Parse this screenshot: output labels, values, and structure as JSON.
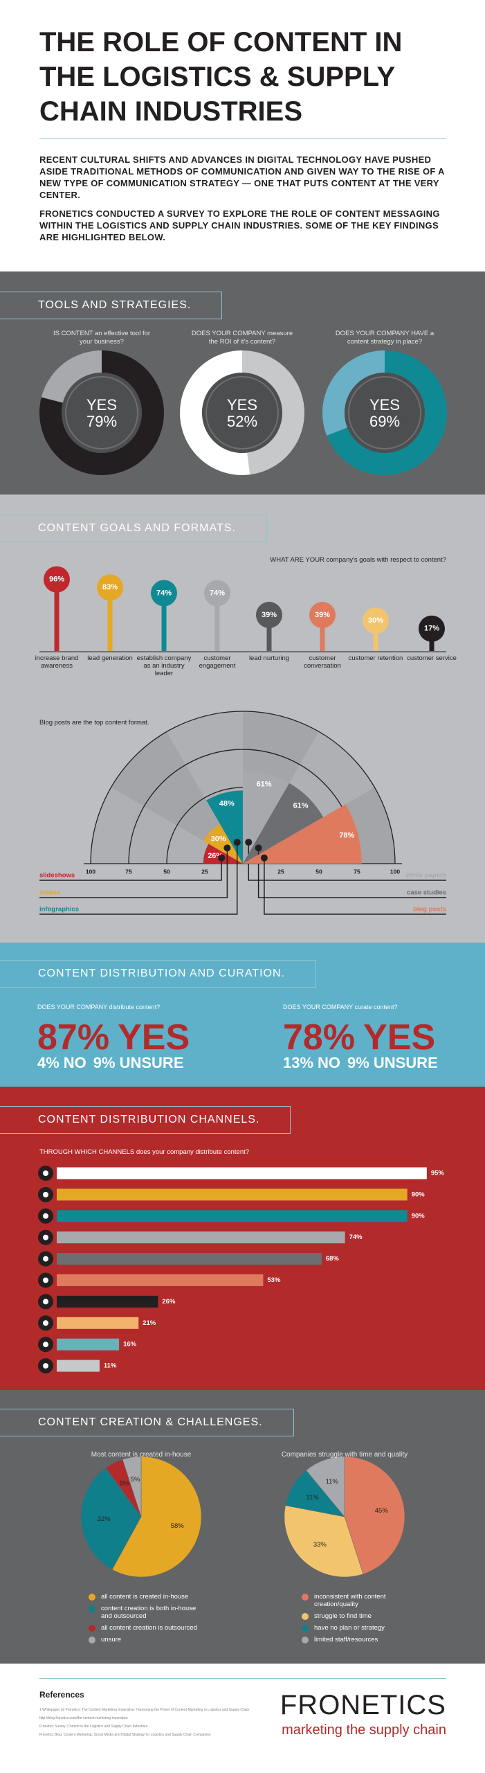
{
  "header": {
    "title": "THE ROLE OF CONTENT IN THE LOGISTICS & SUPPLY CHAIN INDUSTRIES",
    "paragraphs": [
      "RECENT CULTURAL SHIFTS AND ADVANCES IN DIGITAL TECHNOLOGY HAVE PUSHED ASIDE TRADITIONAL METHODS OF COMMUNICATION AND GIVEN WAY TO THE RISE OF A NEW TYPE OF COMMUNICATION STRATEGY — ONE THAT PUTS CONTENT AT THE VERY CENTER.",
      "FRONETICS CONDUCTED A SURVEY TO EXPLORE THE ROLE OF CONTENT MESSAGING WITHIN THE LOGISTICS AND SUPPLY CHAIN INDUSTRIES. SOME OF THE KEY FINDINGS ARE HIGHLIGHTED BELOW."
    ]
  },
  "sections": [
    "TOOLS AND STRATEGIES.",
    "CONTENT GOALS AND FORMATS.",
    "CONTENT DISTRIBUTION AND CURATION.",
    "CONTENT DISTRIBUTION CHANNELS.",
    "CONTENT CREATION & CHALLENGES."
  ],
  "chart_data": [
    {
      "type": "donut",
      "title": "IS CONTENT an effective tool for your business?",
      "categories": [
        "YES"
      ],
      "values": [
        79
      ],
      "value_labels": [
        "79%"
      ],
      "colors": [
        "#231f20",
        "#a7a9ac"
      ]
    },
    {
      "type": "donut",
      "title": "DOES YOUR COMPANY measure the ROI of it's content?",
      "categories": [
        "YES"
      ],
      "values": [
        52
      ],
      "value_labels": [
        "52%"
      ],
      "colors": [
        "#ffffff",
        "#c7c8ca"
      ]
    },
    {
      "type": "donut",
      "title": "DOES YOUR COMPANY HAVE a content strategy in place?",
      "categories": [
        "YES"
      ],
      "values": [
        69
      ],
      "value_labels": [
        "69%"
      ],
      "colors": [
        "#0f8a94",
        "#6ab0c6"
      ]
    },
    {
      "type": "lollipop",
      "title": "WHAT ARE YOUR company's goals with respect to content?",
      "categories": [
        "increase brand awareness",
        "lead generation",
        "establish company as an industry leader",
        "customer engagement",
        "lead nurturing",
        "customer conversation",
        "customer retention",
        "customer service"
      ],
      "values": [
        96,
        83,
        74,
        74,
        39,
        39,
        30,
        17
      ],
      "value_labels": [
        "96%",
        "83%",
        "74%",
        "74%",
        "39%",
        "39%",
        "30%",
        "17%"
      ],
      "colors": [
        "#c1272d",
        "#e5a825",
        "#0f8a94",
        "#a7a9ac",
        "#58595b",
        "#e07a5f",
        "#f2c46d",
        "#231f20"
      ],
      "ylim": [
        0,
        100
      ]
    },
    {
      "type": "radial",
      "title": "Blog posts are the top content format.",
      "categories": [
        "slideshows",
        "videos",
        "infographics",
        "white papers",
        "case studies",
        "blog posts"
      ],
      "values": [
        26,
        30,
        48,
        61,
        61,
        78
      ],
      "value_labels": [
        "26%",
        "30%",
        "48%",
        "61%",
        "61%",
        "78%"
      ],
      "colors": [
        "#c1272d",
        "#e5a825",
        "#0f8a94",
        "#a7a9ac",
        "#6d6e71",
        "#e07a5f"
      ],
      "rlim": [
        0,
        100
      ],
      "rticks": [
        25,
        50,
        75,
        100
      ]
    },
    {
      "type": "stat",
      "title": "DOES YOUR COMPANY distribute content?",
      "categories": [
        "YES",
        "NO",
        "UNSURE"
      ],
      "values": [
        87,
        4,
        9
      ],
      "value_labels": [
        "87%",
        "4%",
        "9%"
      ],
      "colors": [
        "#b22a2a",
        "#ffffff",
        "#ffffff"
      ]
    },
    {
      "type": "stat",
      "title": "DOES YOUR COMPANY curate content?",
      "categories": [
        "YES",
        "NO",
        "UNSURE"
      ],
      "values": [
        78,
        13,
        9
      ],
      "value_labels": [
        "78%",
        "13%",
        "9%"
      ],
      "colors": [
        "#b22a2a",
        "#ffffff",
        "#ffffff"
      ]
    },
    {
      "type": "hbar",
      "title": "THROUGH WHICH CHANNELS does your company distribute content?",
      "values": [
        95,
        90,
        90,
        74,
        68,
        53,
        26,
        21,
        16,
        11
      ],
      "value_labels": [
        "95%",
        "90%",
        "90%",
        "74%",
        "68%",
        "53%",
        "26%",
        "21%",
        "16%",
        "11%"
      ],
      "colors": [
        "#ffffff",
        "#e5a825",
        "#0f8a94",
        "#a7a9ac",
        "#6d6e71",
        "#e07a5f",
        "#231f20",
        "#f2b46d",
        "#6ab0b8",
        "#c7c8ca"
      ],
      "xlim": [
        0,
        100
      ]
    },
    {
      "type": "pie",
      "title": "Most content is created in-house",
      "categories": [
        "all content is created in-house",
        "content creation is both in-house and outsourced",
        "all content creation is outsourced",
        "unsure"
      ],
      "values": [
        58,
        32,
        5,
        5
      ],
      "value_labels": [
        "58%",
        "32%",
        "5%",
        "5%"
      ],
      "colors": [
        "#e5a825",
        "#0f7f8c",
        "#b22a2a",
        "#a7a9ac"
      ]
    },
    {
      "type": "pie",
      "title": "Companies struggle with time and quality",
      "categories": [
        "inconsistent with content creation/quality",
        "struggle to find time",
        "have no plan or strategy",
        "limited staff/resources"
      ],
      "values": [
        45,
        33,
        11,
        11
      ],
      "value_labels": [
        "45%",
        "33%",
        "11%",
        "11%"
      ],
      "colors": [
        "#e07a5f",
        "#f2c46d",
        "#0f7f8c",
        "#a7a9ac"
      ]
    }
  ],
  "references": {
    "title": "References",
    "items": [
      "1 Whitepaper by Fronetics: The Content Marketing Imperative: Harnessing the Power of Content Marketing in Logistics and Supply Chain",
      "http://blog.fronetics.com/the-content-marketing-imperative",
      "Fronetics Survey: Content in the Logistics and Supply Chain Industries",
      "Fronetics Blog: Content Marketing, Social Media and Digital Strategy for Logistics and Supply Chain Companies"
    ]
  },
  "logo": {
    "name": "FRONETICS",
    "tagline": "marketing the supply chain"
  }
}
